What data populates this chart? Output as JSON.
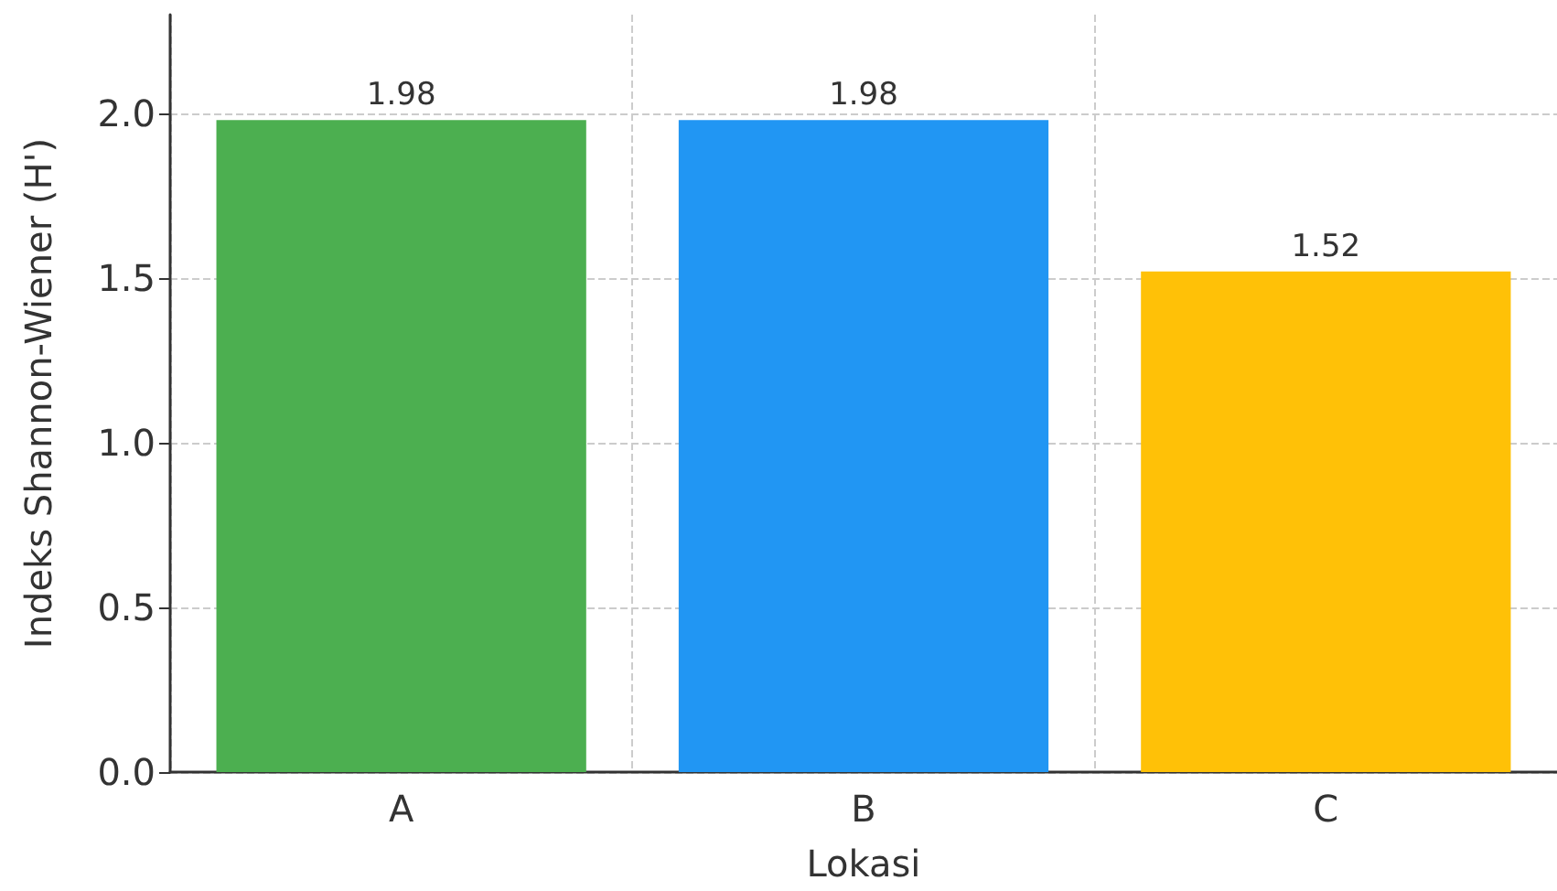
{
  "chart_data": {
    "type": "bar",
    "xlabel": "Lokasi",
    "ylabel": "Indeks Shannon-Wiener (H')",
    "categories": [
      "A",
      "B",
      "C"
    ],
    "values": [
      1.98,
      1.98,
      1.52
    ],
    "colors": [
      "#4caf50",
      "#2196f3",
      "#ffc107"
    ],
    "ylim": [
      0,
      2.3
    ],
    "yticks": [
      {
        "value": 0,
        "label": "0.0"
      },
      0.5,
      {
        "value": 1,
        "label": "1.0"
      },
      1.5,
      {
        "value": 2,
        "label": "2.0"
      }
    ],
    "grid": true,
    "data_labels": true
  }
}
